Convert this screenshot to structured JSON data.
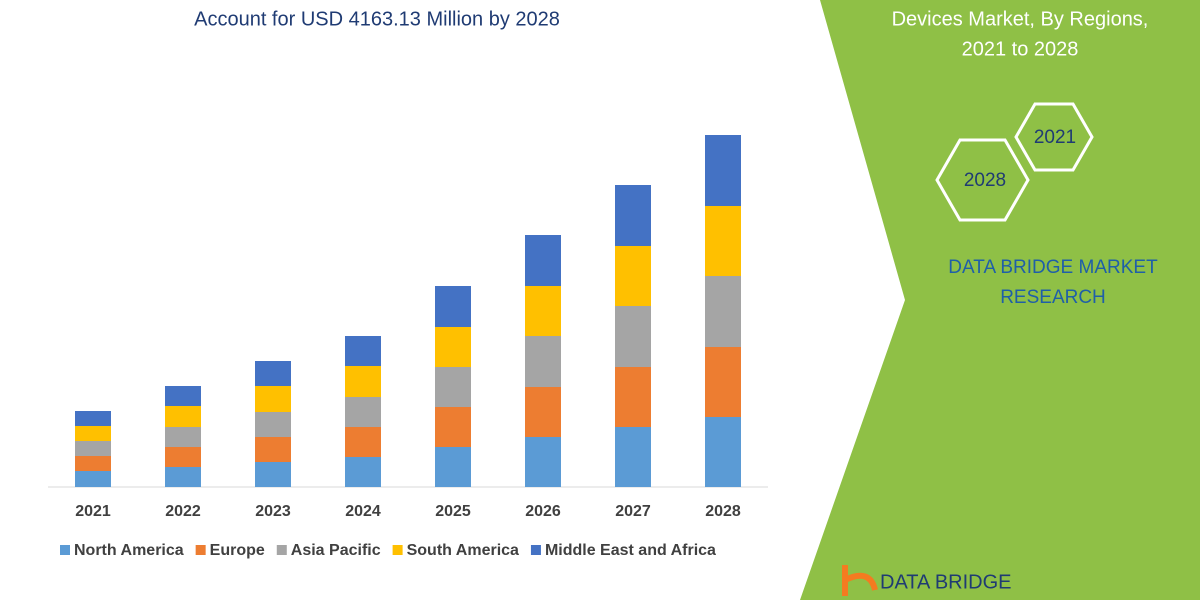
{
  "chart_data": {
    "type": "stacked_bar",
    "title": "Account for USD 4163.13 Million by 2028",
    "categories": [
      "2021",
      "2022",
      "2023",
      "2024",
      "2025",
      "2026",
      "2027",
      "2028"
    ],
    "series": [
      {
        "name": "North America",
        "color": "#5b9bd5",
        "values": [
          16,
          20,
          25,
          30,
          40,
          50,
          60,
          70
        ]
      },
      {
        "name": "Europe",
        "color": "#ed7d31",
        "values": [
          15,
          20,
          25,
          30,
          40,
          50,
          60,
          70
        ]
      },
      {
        "name": "Asia Pacific",
        "color": "#a5a5a5",
        "values": [
          15,
          20,
          25,
          30,
          40,
          51,
          61,
          71
        ]
      },
      {
        "name": "South America",
        "color": "#ffc000",
        "values": [
          15,
          21,
          26,
          31,
          40,
          50,
          60,
          70
        ]
      },
      {
        "name": "Middle East and Africa",
        "color": "#4472c4",
        "values": [
          15,
          20,
          25,
          30,
          41,
          51,
          61,
          71
        ]
      }
    ]
  },
  "side_panel": {
    "title_lines": [
      "Devices Market, By Regions,",
      "2021 to 2028"
    ],
    "hexagons": [
      "2021",
      "2028"
    ],
    "brand_lines": [
      "DATA BRIDGE MARKET",
      "RESEARCH"
    ],
    "logo_text": "DATA BRIDGE"
  }
}
